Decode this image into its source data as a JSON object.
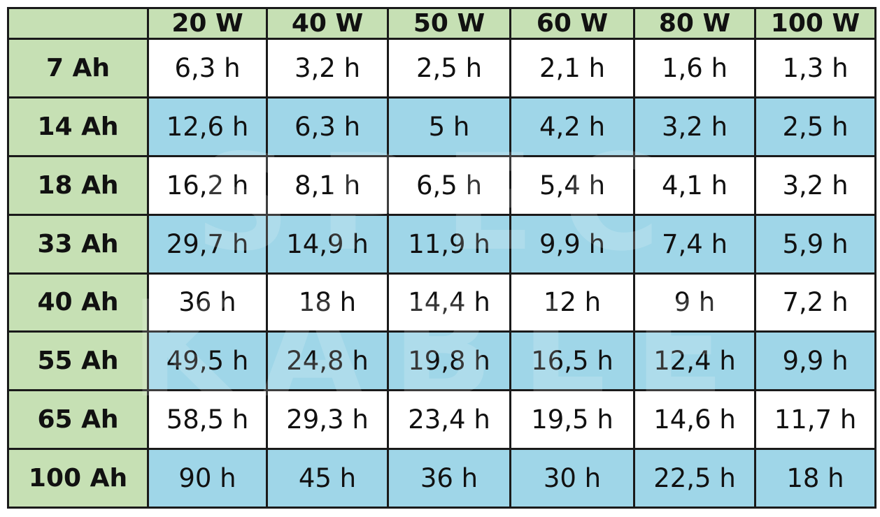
{
  "table": {
    "headers": [
      "20 W",
      "40 W",
      "50 W",
      "60 W",
      "80 W",
      "100 W"
    ],
    "rows": [
      [
        "7 Ah",
        "6,3 h",
        "3,2 h",
        "2,5 h",
        "2,1 h",
        "1,6 h",
        "1,3 h"
      ],
      [
        "14 Ah",
        "12,6 h",
        "6,3 h",
        "5 h",
        "4,2 h",
        "3,2 h",
        "2,5 h"
      ],
      [
        "18 Ah",
        "16,2 h",
        "8,1 h",
        "6,5 h",
        "5,4 h",
        "4,1 h",
        "3,2 h"
      ],
      [
        "33 Ah",
        "29,7 h",
        "14,9 h",
        "11,9 h",
        "9,9 h",
        "7,4 h",
        "5,9 h"
      ],
      [
        "40 Ah",
        "36 h",
        "18 h",
        "14,4 h",
        "12 h",
        "9 h",
        "7,2 h"
      ],
      [
        "55 Ah",
        "49,5 h",
        "24,8 h",
        "19,8 h",
        "16,5 h",
        "12,4 h",
        "9,9 h"
      ],
      [
        "65 Ah",
        "58,5 h",
        "29,3 h",
        "23,4 h",
        "19,5 h",
        "14,6 h",
        "11,7 h"
      ],
      [
        "100 Ah",
        "90 h",
        "45 h",
        "36 h",
        "30 h",
        "22,5 h",
        "18 h"
      ]
    ]
  },
  "watermark": [
    "SPEC",
    "KABLE"
  ]
}
